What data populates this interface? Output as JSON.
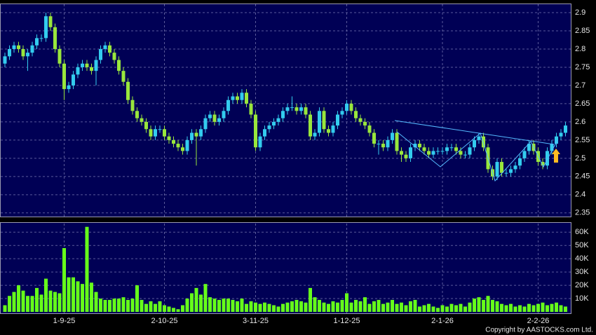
{
  "chart_data": [
    {
      "type": "candlestick",
      "categories": [
        null,
        null,
        null,
        null,
        null,
        null,
        null,
        null,
        null,
        null,
        null,
        null,
        null,
        "1-9-25",
        null,
        null,
        null,
        null,
        null,
        null,
        null,
        null,
        null,
        null,
        null,
        null,
        null,
        null,
        null,
        null,
        null,
        null,
        null,
        null,
        null,
        "2-10-25",
        null,
        null,
        null,
        null,
        null,
        null,
        null,
        null,
        null,
        null,
        null,
        null,
        null,
        null,
        null,
        null,
        null,
        null,
        null,
        "3-11-25",
        null,
        null,
        null,
        null,
        null,
        null,
        null,
        null,
        null,
        null,
        null,
        null,
        null,
        null,
        null,
        null,
        null,
        null,
        null,
        "1-12-25",
        null,
        null,
        null,
        null,
        null,
        null,
        null,
        null,
        null,
        null,
        null,
        null,
        null,
        null,
        null,
        null,
        null,
        null,
        null,
        null,
        "2-1-26",
        null,
        null,
        null,
        null,
        null,
        null,
        null,
        null,
        null,
        null,
        null,
        null,
        null,
        null,
        null,
        null,
        null,
        null,
        null,
        null,
        "2-2-26",
        null,
        null,
        null,
        null,
        null,
        null
      ],
      "open": [
        2.76,
        2.78,
        2.8,
        2.81,
        2.8,
        2.78,
        2.79,
        2.81,
        2.83,
        2.83,
        2.89,
        2.86,
        2.8,
        2.76,
        2.69,
        2.7,
        2.73,
        2.75,
        2.76,
        2.75,
        2.74,
        2.77,
        2.8,
        2.81,
        2.79,
        2.77,
        2.74,
        2.71,
        2.66,
        2.63,
        2.61,
        2.6,
        2.58,
        2.56,
        2.58,
        2.58,
        2.56,
        2.55,
        2.54,
        2.53,
        2.52,
        2.55,
        2.57,
        2.56,
        2.58,
        2.61,
        2.62,
        2.6,
        2.61,
        2.63,
        2.66,
        2.67,
        2.66,
        2.68,
        2.65,
        2.62,
        2.53,
        2.56,
        2.58,
        2.59,
        2.6,
        2.61,
        2.63,
        2.64,
        2.64,
        2.63,
        2.64,
        2.62,
        2.56,
        2.57,
        2.63,
        2.58,
        2.57,
        2.59,
        2.62,
        2.63,
        2.65,
        2.63,
        2.61,
        2.6,
        2.59,
        2.57,
        2.54,
        2.54,
        2.53,
        2.55,
        2.57,
        2.52,
        2.51,
        2.5,
        2.53,
        2.54,
        2.53,
        2.52,
        2.51,
        2.52,
        2.52,
        2.52,
        2.53,
        2.53,
        2.52,
        2.51,
        2.51,
        2.53,
        2.55,
        2.56,
        2.53,
        2.47,
        2.45,
        2.49,
        2.46,
        2.46,
        2.47,
        2.48,
        2.5,
        2.52,
        2.54,
        2.52,
        2.49,
        2.48,
        2.52,
        2.54,
        2.56,
        2.57
      ],
      "high": [
        2.79,
        2.81,
        2.82,
        2.82,
        2.81,
        2.8,
        2.82,
        2.84,
        2.84,
        2.9,
        2.9,
        2.87,
        2.81,
        2.77,
        2.71,
        2.74,
        2.76,
        2.77,
        2.77,
        2.76,
        2.78,
        2.81,
        2.82,
        2.82,
        2.8,
        2.78,
        2.75,
        2.72,
        2.67,
        2.64,
        2.62,
        2.61,
        2.59,
        2.59,
        2.59,
        2.59,
        2.57,
        2.56,
        2.55,
        2.54,
        2.56,
        2.58,
        2.58,
        2.59,
        2.62,
        2.63,
        2.63,
        2.62,
        2.64,
        2.67,
        2.68,
        2.68,
        2.69,
        2.69,
        2.66,
        2.63,
        2.57,
        2.59,
        2.6,
        2.61,
        2.62,
        2.64,
        2.65,
        2.67,
        2.65,
        2.65,
        2.65,
        2.63,
        2.58,
        2.64,
        2.64,
        2.59,
        2.6,
        2.63,
        2.64,
        2.66,
        2.66,
        2.64,
        2.62,
        2.61,
        2.6,
        2.58,
        2.55,
        2.55,
        2.56,
        2.58,
        2.58,
        2.53,
        2.52,
        2.54,
        2.55,
        2.55,
        2.54,
        2.53,
        2.53,
        2.53,
        2.53,
        2.54,
        2.54,
        2.54,
        2.53,
        2.52,
        2.54,
        2.56,
        2.57,
        2.57,
        2.54,
        2.48,
        2.5,
        2.5,
        2.47,
        2.48,
        2.49,
        2.51,
        2.53,
        2.55,
        2.55,
        2.53,
        2.5,
        2.53,
        2.55,
        2.57,
        2.58,
        2.6
      ],
      "low": [
        2.75,
        2.77,
        2.79,
        2.79,
        2.77,
        2.74,
        2.78,
        2.8,
        2.82,
        2.82,
        2.85,
        2.79,
        2.75,
        2.66,
        2.68,
        2.69,
        2.72,
        2.74,
        2.74,
        2.73,
        2.7,
        2.76,
        2.79,
        2.78,
        2.76,
        2.73,
        2.7,
        2.65,
        2.62,
        2.6,
        2.59,
        2.57,
        2.55,
        2.55,
        2.57,
        2.55,
        2.54,
        2.53,
        2.52,
        2.51,
        2.51,
        2.54,
        2.48,
        2.55,
        2.57,
        2.6,
        2.59,
        2.59,
        2.6,
        2.62,
        2.65,
        2.65,
        2.65,
        2.64,
        2.61,
        2.52,
        2.52,
        2.55,
        2.57,
        2.58,
        2.59,
        2.6,
        2.62,
        2.63,
        2.62,
        2.62,
        2.61,
        2.55,
        2.55,
        2.56,
        2.57,
        2.56,
        2.56,
        2.58,
        2.61,
        2.62,
        2.62,
        2.6,
        2.59,
        2.58,
        2.56,
        2.53,
        2.51,
        2.52,
        2.52,
        2.54,
        2.51,
        2.49,
        2.49,
        2.49,
        2.52,
        2.52,
        2.51,
        2.5,
        2.5,
        2.51,
        2.51,
        2.51,
        2.52,
        2.51,
        2.5,
        2.5,
        2.5,
        2.52,
        2.54,
        2.52,
        2.46,
        2.44,
        2.44,
        2.45,
        2.45,
        2.45,
        2.46,
        2.47,
        2.49,
        2.51,
        2.51,
        2.48,
        2.47,
        2.47,
        2.51,
        2.53,
        2.55,
        2.56
      ],
      "close": [
        2.78,
        2.8,
        2.81,
        2.8,
        2.78,
        2.79,
        2.81,
        2.83,
        2.83,
        2.89,
        2.86,
        2.8,
        2.76,
        2.69,
        2.7,
        2.73,
        2.75,
        2.76,
        2.75,
        2.74,
        2.77,
        2.8,
        2.81,
        2.79,
        2.77,
        2.74,
        2.71,
        2.66,
        2.63,
        2.61,
        2.6,
        2.58,
        2.56,
        2.58,
        2.58,
        2.56,
        2.55,
        2.54,
        2.53,
        2.52,
        2.55,
        2.57,
        2.56,
        2.58,
        2.61,
        2.62,
        2.6,
        2.61,
        2.63,
        2.66,
        2.67,
        2.66,
        2.68,
        2.65,
        2.62,
        2.53,
        2.56,
        2.58,
        2.59,
        2.6,
        2.61,
        2.63,
        2.64,
        2.64,
        2.63,
        2.64,
        2.62,
        2.56,
        2.57,
        2.63,
        2.58,
        2.57,
        2.59,
        2.62,
        2.63,
        2.65,
        2.63,
        2.61,
        2.6,
        2.59,
        2.57,
        2.54,
        2.54,
        2.53,
        2.55,
        2.57,
        2.52,
        2.51,
        2.5,
        2.53,
        2.54,
        2.53,
        2.52,
        2.51,
        2.52,
        2.52,
        2.52,
        2.53,
        2.53,
        2.52,
        2.51,
        2.51,
        2.53,
        2.55,
        2.56,
        2.53,
        2.47,
        2.45,
        2.49,
        2.46,
        2.46,
        2.47,
        2.48,
        2.5,
        2.52,
        2.54,
        2.52,
        2.49,
        2.48,
        2.52,
        2.54,
        2.56,
        2.57,
        2.59
      ],
      "up_color": "#33ccee",
      "down_color": "#99e63c",
      "ylim": [
        2.34,
        2.925
      ],
      "yticks": [
        2.35,
        2.4,
        2.45,
        2.5,
        2.55,
        2.6,
        2.65,
        2.7,
        2.75,
        2.8,
        2.85,
        2.9
      ],
      "grid": true
    },
    {
      "type": "bar",
      "color": "#66ff1a",
      "values": [
        5,
        12,
        15,
        20,
        16,
        12,
        12,
        18,
        13,
        25,
        16,
        15,
        14,
        48,
        26,
        26,
        23,
        21,
        64,
        22,
        15,
        10,
        9,
        9,
        10,
        10,
        11,
        9,
        10,
        20,
        9,
        6,
        8,
        6,
        8,
        5,
        4,
        3,
        2,
        5,
        10,
        14,
        18,
        13,
        21,
        11,
        10,
        9,
        10,
        10,
        9,
        8,
        10,
        6,
        8,
        7,
        6,
        7,
        6,
        5,
        4,
        6,
        7,
        8,
        9,
        8,
        7,
        18,
        11,
        9,
        7,
        6,
        8,
        7,
        9,
        14,
        7,
        9,
        8,
        11,
        6,
        8,
        9,
        6,
        7,
        9,
        6,
        7,
        5,
        8,
        9,
        4,
        5,
        6,
        4,
        3,
        5,
        4,
        6,
        5,
        6,
        4,
        7,
        10,
        11,
        9,
        12,
        9,
        8,
        6,
        5,
        6,
        4,
        5,
        4,
        6,
        5,
        6,
        7,
        5,
        6,
        7,
        5,
        4
      ],
      "ylim": [
        0,
        67
      ],
      "yticks": [
        {
          "value": 10,
          "label": "10K"
        },
        {
          "value": 20,
          "label": "20K"
        },
        {
          "value": 30,
          "label": "30K"
        },
        {
          "value": 40,
          "label": "40K"
        },
        {
          "value": 50,
          "label": "50K"
        },
        {
          "value": 60,
          "label": "60K"
        }
      ],
      "grid": true
    }
  ],
  "footer": "Copyright by AASTOCKS.com Ltd."
}
